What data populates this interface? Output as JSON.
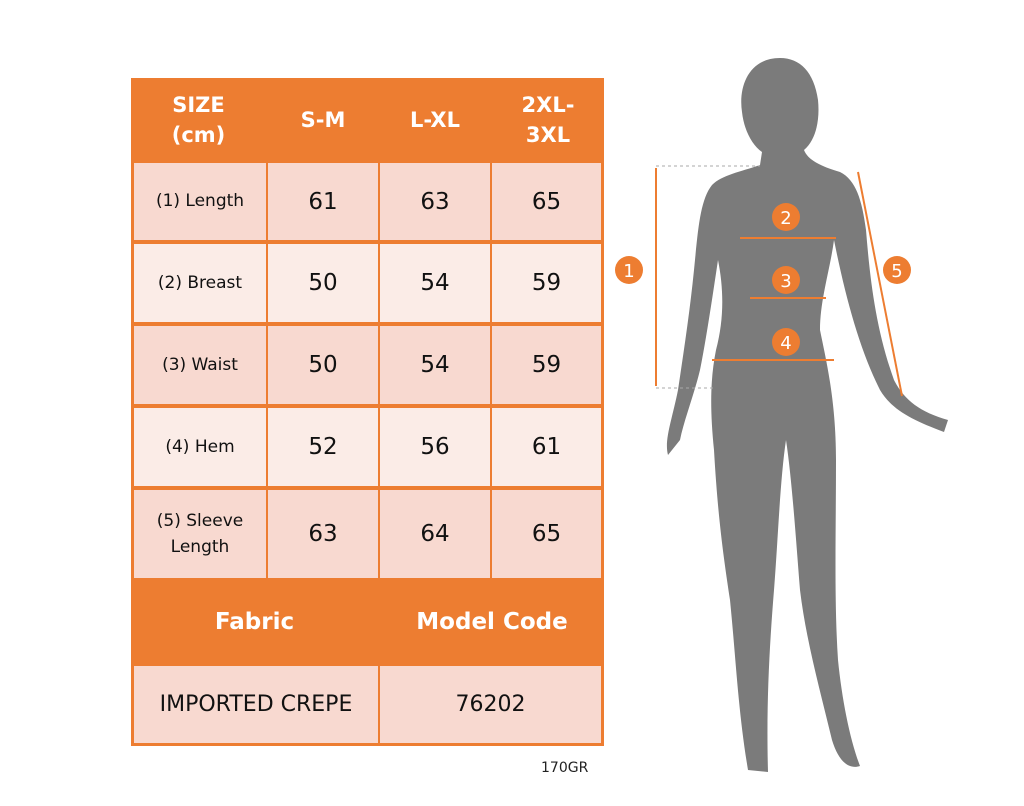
{
  "colors": {
    "accent": "#ed7d31",
    "row_dark": "#f8d9d0",
    "row_light": "#fbece7",
    "silhouette": "#7b7b7b"
  },
  "table": {
    "header": [
      "SIZE\n(cm)",
      "S-M",
      "L-XL",
      "2XL-\n3XL"
    ],
    "rows": [
      {
        "label": "(1) Length",
        "values": [
          "61",
          "63",
          "65"
        ]
      },
      {
        "label": "(2) Breast",
        "values": [
          "50",
          "54",
          "59"
        ]
      },
      {
        "label": "(3) Waist",
        "values": [
          "50",
          "54",
          "59"
        ]
      },
      {
        "label": "(4) Hem",
        "values": [
          "52",
          "56",
          "61"
        ]
      },
      {
        "label": "(5) Sleeve\nLength",
        "values": [
          "63",
          "64",
          "65"
        ]
      }
    ],
    "fabric_header": "Fabric",
    "model_header": "Model Code",
    "fabric_value": "IMPORTED CREPE",
    "model_value": "76202"
  },
  "footnote": "170GR",
  "markers": [
    "1",
    "2",
    "3",
    "4",
    "5"
  ]
}
